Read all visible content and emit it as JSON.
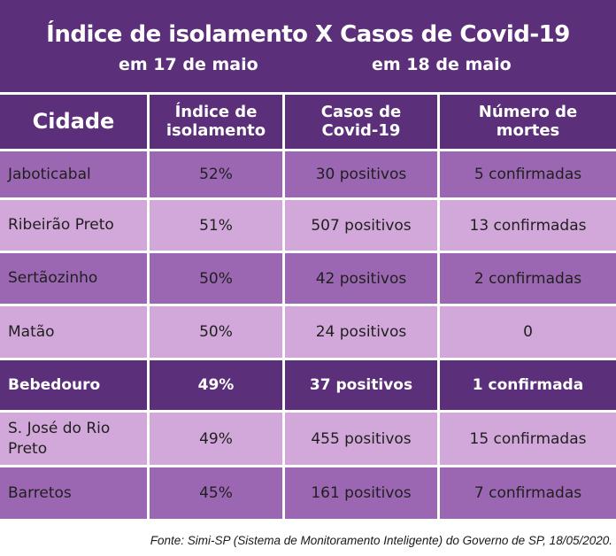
{
  "title": {
    "main": "Índice de isolamento X Casos de Covid-19",
    "left_date": "em 17 de maio",
    "right_date": "em 18 de maio"
  },
  "columns": [
    "Cidade",
    "Índice de isolamento",
    "Casos de Covid-19",
    "Número de mortes"
  ],
  "rows": [
    {
      "city": "Jaboticabal",
      "isolation": "52%",
      "cases": "30 positivos",
      "deaths": "5 confirmadas",
      "style": "dark"
    },
    {
      "city": "Ribeirão Preto",
      "isolation": "51%",
      "cases": "507 positivos",
      "deaths": "13 confirmadas",
      "style": "light"
    },
    {
      "city": "Sertãozinho",
      "isolation": "50%",
      "cases": "42 positivos",
      "deaths": "2 confirmadas",
      "style": "dark"
    },
    {
      "city": "Matão",
      "isolation": "50%",
      "cases": "24 positivos",
      "deaths": "0",
      "style": "light"
    },
    {
      "city": "Bebedouro",
      "isolation": "49%",
      "cases": "37 positivos",
      "deaths": "1 confirmada",
      "style": "highlight"
    },
    {
      "city": "S. José do Rio Preto",
      "isolation": "49%",
      "cases": "455 positivos",
      "deaths": "15 confirmadas",
      "style": "light"
    },
    {
      "city": "Barretos",
      "isolation": "45%",
      "cases": "161 positivos",
      "deaths": "7 confirmadas",
      "style": "dark"
    }
  ],
  "source": "Fonte: Simi-SP (Sistema de Monitoramento Inteligente) do Governo de SP, 18/05/2020.",
  "colors": {
    "header": "#5b2f79",
    "row_dark": "#9c67b2",
    "row_light": "#d2a8da",
    "highlight": "#5b2f79"
  }
}
